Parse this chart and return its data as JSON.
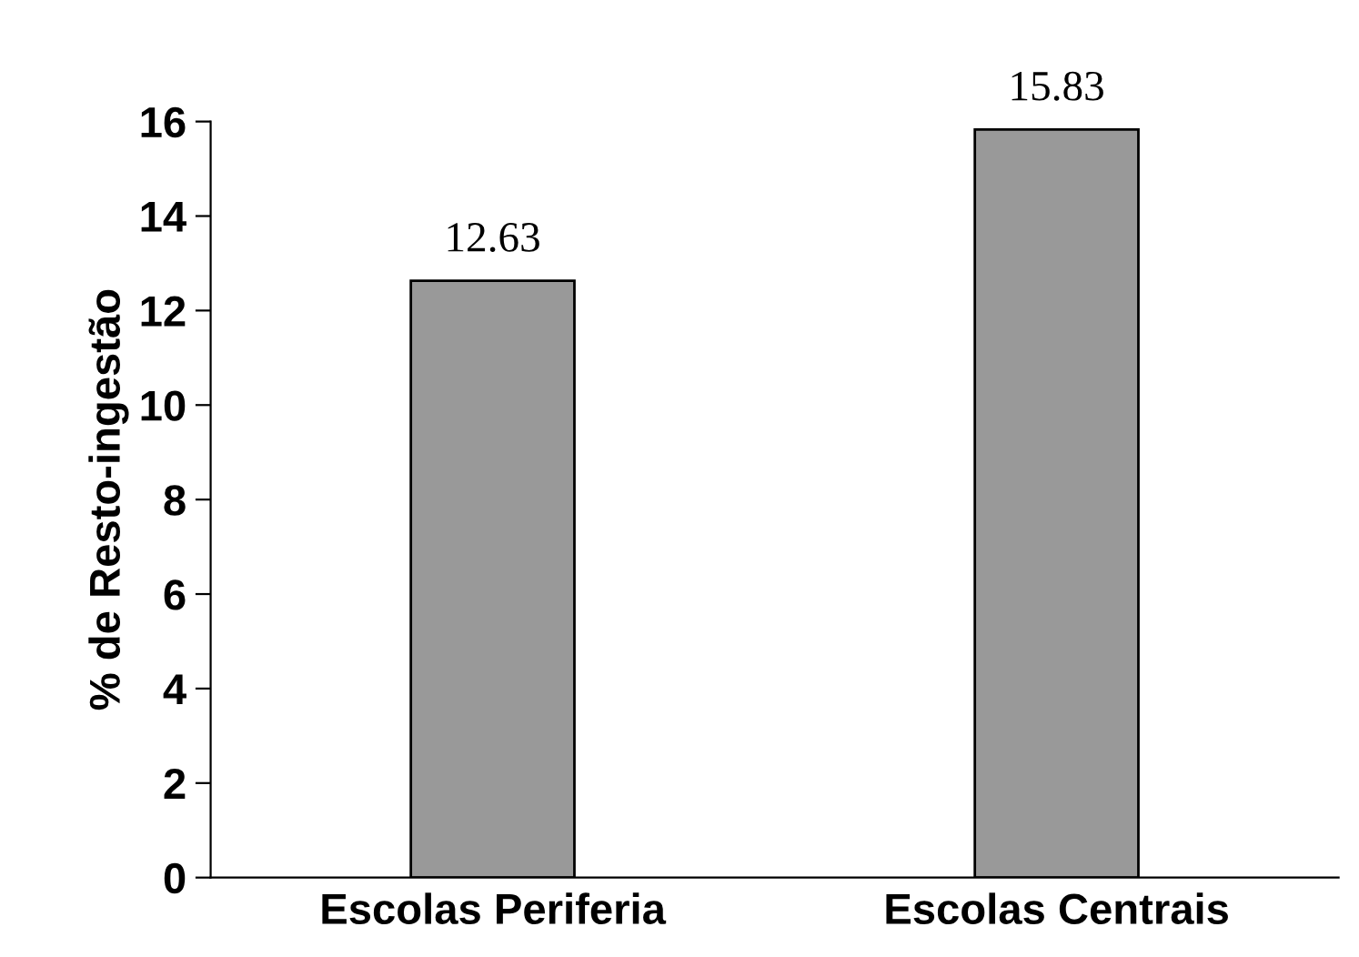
{
  "chart_data": {
    "type": "bar",
    "ylabel": "% de Resto-ingestão",
    "categories": [
      "Escolas Periferia",
      "Escolas Centrais"
    ],
    "values": [
      12.63,
      15.83
    ],
    "color": "#999999",
    "ylim": [
      0,
      16
    ],
    "yticks": [
      0,
      2,
      4,
      6,
      8,
      10,
      12,
      14,
      16
    ],
    "grid": false,
    "data_labels": true
  }
}
